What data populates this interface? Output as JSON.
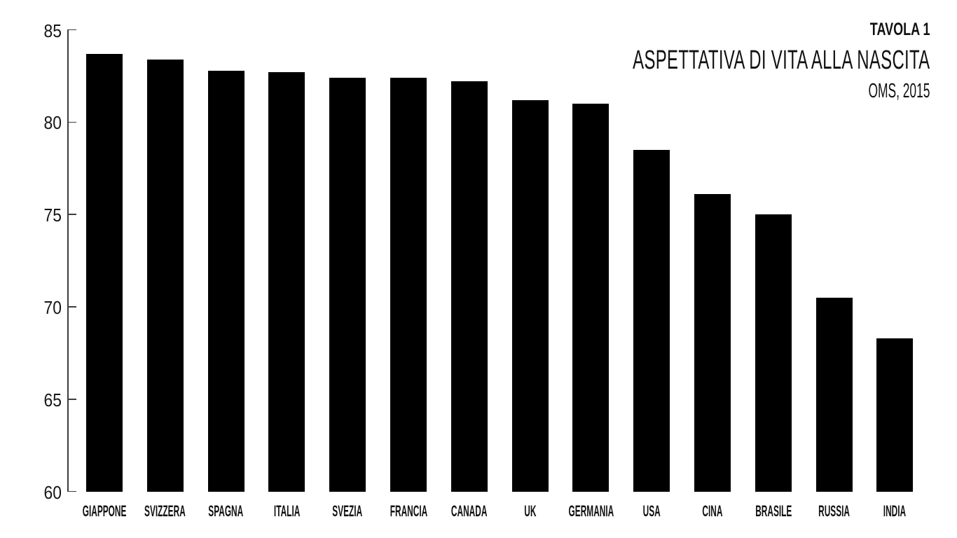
{
  "title": {
    "table_label": "TAVOLA 1",
    "main": "ASPETTATIVA DI VITA ALLA NASCITA",
    "source": "OMS, 2015"
  },
  "chart_data": {
    "type": "bar",
    "title": "ASPETTATIVA DI VITA ALLA NASCITA",
    "subtitle": "TAVOLA 1",
    "source": "OMS, 2015",
    "categories": [
      "GIAPPONE",
      "SVIZZERA",
      "SPAGNA",
      "ITALIA",
      "SVEZIA",
      "FRANCIA",
      "CANADA",
      "UK",
      "GERMANIA",
      "USA",
      "CINA",
      "BRASILE",
      "RUSSIA",
      "INDIA"
    ],
    "values": [
      83.7,
      83.4,
      82.8,
      82.7,
      82.4,
      82.4,
      82.2,
      81.2,
      81.0,
      78.5,
      76.1,
      75.0,
      70.5,
      68.3
    ],
    "xlabel": "",
    "ylabel": "",
    "ylim": [
      60,
      85
    ],
    "y_ticks": [
      85,
      80,
      75,
      70,
      65,
      60
    ],
    "grid": false,
    "legend": false,
    "bar_color": "#000000",
    "axis_color": "#3d3d3d",
    "text_color": "#111111"
  }
}
